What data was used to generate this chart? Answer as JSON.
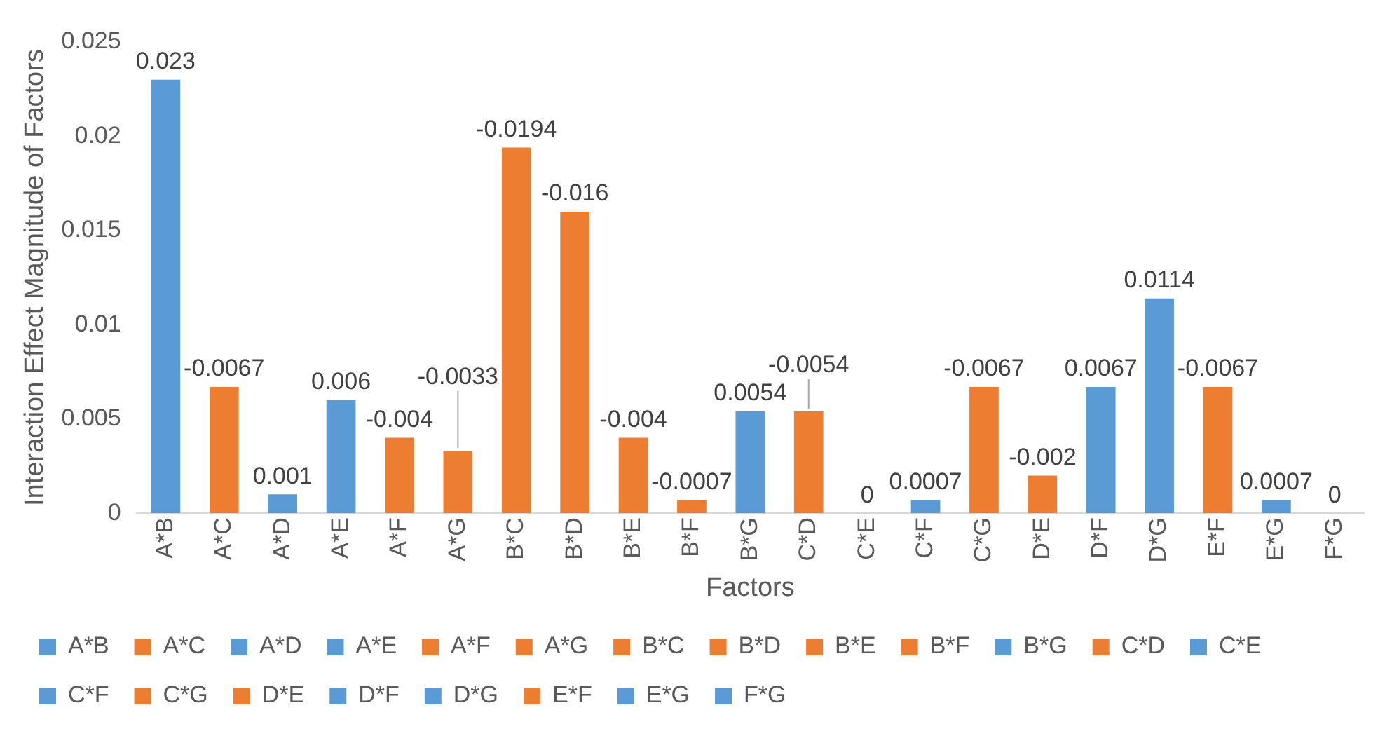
{
  "chart_data": {
    "type": "bar",
    "xlabel": "Factors",
    "ylabel": "Interaction Effect Magnitude of Factors",
    "categories": [
      "A*B",
      "A*C",
      "A*D",
      "A*E",
      "A*F",
      "A*G",
      "B*C",
      "B*D",
      "B*E",
      "B*F",
      "B*G",
      "C*D",
      "C*E",
      "C*F",
      "C*G",
      "D*E",
      "D*F",
      "D*G",
      "E*F",
      "E*G",
      "F*G"
    ],
    "ylim": [
      0,
      0.025
    ],
    "yticks": [
      0,
      0.005,
      0.01,
      0.015,
      0.02,
      0.025
    ],
    "grid": false,
    "legend": "bottom",
    "series": [
      {
        "name": "A*B",
        "color": "#5b9bd5",
        "values": [
          0.023,
          null,
          null,
          null,
          null,
          null,
          null,
          null,
          null,
          null,
          null,
          null,
          null,
          null,
          null,
          null,
          null,
          null,
          null,
          null,
          null
        ]
      },
      {
        "name": "A*C",
        "color": "#ed7d31",
        "values": [
          null,
          0.0067,
          null,
          null,
          null,
          null,
          null,
          null,
          null,
          null,
          null,
          null,
          null,
          null,
          null,
          null,
          null,
          null,
          null,
          null,
          null
        ]
      },
      {
        "name": "A*D",
        "color": "#5b9bd5",
        "values": [
          null,
          null,
          0.001,
          null,
          null,
          null,
          null,
          null,
          null,
          null,
          null,
          null,
          null,
          null,
          null,
          null,
          null,
          null,
          null,
          null,
          null
        ]
      },
      {
        "name": "A*E",
        "color": "#5b9bd5",
        "values": [
          null,
          null,
          null,
          0.006,
          null,
          null,
          null,
          null,
          null,
          null,
          null,
          null,
          null,
          null,
          null,
          null,
          null,
          null,
          null,
          null,
          null
        ]
      },
      {
        "name": "A*F",
        "color": "#ed7d31",
        "values": [
          null,
          null,
          null,
          null,
          0.004,
          null,
          null,
          null,
          null,
          null,
          null,
          null,
          null,
          null,
          null,
          null,
          null,
          null,
          null,
          null,
          null
        ]
      },
      {
        "name": "A*G",
        "color": "#ed7d31",
        "values": [
          null,
          null,
          null,
          null,
          null,
          0.0033,
          null,
          null,
          null,
          null,
          null,
          null,
          null,
          null,
          null,
          null,
          null,
          null,
          null,
          null,
          null
        ]
      },
      {
        "name": "B*C",
        "color": "#ed7d31",
        "values": [
          null,
          null,
          null,
          null,
          null,
          null,
          0.0194,
          null,
          null,
          null,
          null,
          null,
          null,
          null,
          null,
          null,
          null,
          null,
          null,
          null,
          null
        ]
      },
      {
        "name": "B*D",
        "color": "#ed7d31",
        "values": [
          null,
          null,
          null,
          null,
          null,
          null,
          null,
          0.016,
          null,
          null,
          null,
          null,
          null,
          null,
          null,
          null,
          null,
          null,
          null,
          null,
          null
        ]
      },
      {
        "name": "B*E",
        "color": "#ed7d31",
        "values": [
          null,
          null,
          null,
          null,
          null,
          null,
          null,
          null,
          0.004,
          null,
          null,
          null,
          null,
          null,
          null,
          null,
          null,
          null,
          null,
          null,
          null
        ]
      },
      {
        "name": "B*F",
        "color": "#ed7d31",
        "values": [
          null,
          null,
          null,
          null,
          null,
          null,
          null,
          null,
          null,
          0.0007,
          null,
          null,
          null,
          null,
          null,
          null,
          null,
          null,
          null,
          null,
          null
        ]
      },
      {
        "name": "B*G",
        "color": "#5b9bd5",
        "values": [
          null,
          null,
          null,
          null,
          null,
          null,
          null,
          null,
          null,
          null,
          0.0054,
          null,
          null,
          null,
          null,
          null,
          null,
          null,
          null,
          null,
          null
        ]
      },
      {
        "name": "C*D",
        "color": "#ed7d31",
        "values": [
          null,
          null,
          null,
          null,
          null,
          null,
          null,
          null,
          null,
          null,
          null,
          0.0054,
          null,
          null,
          null,
          null,
          null,
          null,
          null,
          null,
          null
        ]
      },
      {
        "name": "C*E",
        "color": "#5b9bd5",
        "values": [
          null,
          null,
          null,
          null,
          null,
          null,
          null,
          null,
          null,
          null,
          null,
          null,
          0,
          null,
          null,
          null,
          null,
          null,
          null,
          null,
          null
        ]
      },
      {
        "name": "C*F",
        "color": "#5b9bd5",
        "values": [
          null,
          null,
          null,
          null,
          null,
          null,
          null,
          null,
          null,
          null,
          null,
          null,
          null,
          0.0007,
          null,
          null,
          null,
          null,
          null,
          null,
          null
        ]
      },
      {
        "name": "C*G",
        "color": "#ed7d31",
        "values": [
          null,
          null,
          null,
          null,
          null,
          null,
          null,
          null,
          null,
          null,
          null,
          null,
          null,
          null,
          0.0067,
          null,
          null,
          null,
          null,
          null,
          null
        ]
      },
      {
        "name": "D*E",
        "color": "#ed7d31",
        "values": [
          null,
          null,
          null,
          null,
          null,
          null,
          null,
          null,
          null,
          null,
          null,
          null,
          null,
          null,
          null,
          0.002,
          null,
          null,
          null,
          null,
          null
        ]
      },
      {
        "name": "D*F",
        "color": "#5b9bd5",
        "values": [
          null,
          null,
          null,
          null,
          null,
          null,
          null,
          null,
          null,
          null,
          null,
          null,
          null,
          null,
          null,
          null,
          0.0067,
          null,
          null,
          null,
          null
        ]
      },
      {
        "name": "D*G",
        "color": "#5b9bd5",
        "values": [
          null,
          null,
          null,
          null,
          null,
          null,
          null,
          null,
          null,
          null,
          null,
          null,
          null,
          null,
          null,
          null,
          null,
          0.0114,
          null,
          null,
          null
        ]
      },
      {
        "name": "E*F",
        "color": "#ed7d31",
        "values": [
          null,
          null,
          null,
          null,
          null,
          null,
          null,
          null,
          null,
          null,
          null,
          null,
          null,
          null,
          null,
          null,
          null,
          null,
          0.0067,
          null,
          null
        ]
      },
      {
        "name": "E*G",
        "color": "#5b9bd5",
        "values": [
          null,
          null,
          null,
          null,
          null,
          null,
          null,
          null,
          null,
          null,
          null,
          null,
          null,
          null,
          null,
          null,
          null,
          null,
          null,
          0.0007,
          null
        ]
      },
      {
        "name": "F*G",
        "color": "#5b9bd5",
        "values": [
          null,
          null,
          null,
          null,
          null,
          null,
          null,
          null,
          null,
          null,
          null,
          null,
          null,
          null,
          null,
          null,
          null,
          null,
          null,
          null,
          0
        ]
      }
    ],
    "annotations": [
      {
        "text": "0.023",
        "x": "A*B",
        "y": 0.023
      },
      {
        "text": "-0.0067",
        "x": "A*C",
        "y": 0.0067
      },
      {
        "text": "0.001",
        "x": "A*D",
        "y": 0.001
      },
      {
        "text": "0.006",
        "x": "A*E",
        "y": 0.006
      },
      {
        "text": "-0.004",
        "x": "A*F",
        "y": 0.004
      },
      {
        "text": "-0.0033",
        "x": "A*G",
        "y": 0.0033
      },
      {
        "text": "-0.0194",
        "x": "B*C",
        "y": 0.0194
      },
      {
        "text": "-0.016",
        "x": "B*D",
        "y": 0.016
      },
      {
        "text": "-0.004",
        "x": "B*E",
        "y": 0.004
      },
      {
        "text": "-0.0007",
        "x": "B*F",
        "y": 0.0007
      },
      {
        "text": "0.0054",
        "x": "B*G",
        "y": 0.0054
      },
      {
        "text": "-0.0054",
        "x": "C*D",
        "y": 0.0054
      },
      {
        "text": "0",
        "x": "C*E",
        "y": 0
      },
      {
        "text": "0.0007",
        "x": "C*F",
        "y": 0.0007
      },
      {
        "text": "-0.0067",
        "x": "C*G",
        "y": 0.0067
      },
      {
        "text": "-0.002",
        "x": "D*E",
        "y": 0.002
      },
      {
        "text": "0.0067",
        "x": "D*F",
        "y": 0.0067
      },
      {
        "text": "0.0114",
        "x": "D*G",
        "y": 0.0114
      },
      {
        "text": "-0.0067",
        "x": "E*F",
        "y": 0.0067
      },
      {
        "text": "0.0007",
        "x": "E*G",
        "y": 0.0007
      },
      {
        "text": "0",
        "x": "F*G",
        "y": 0
      }
    ]
  }
}
